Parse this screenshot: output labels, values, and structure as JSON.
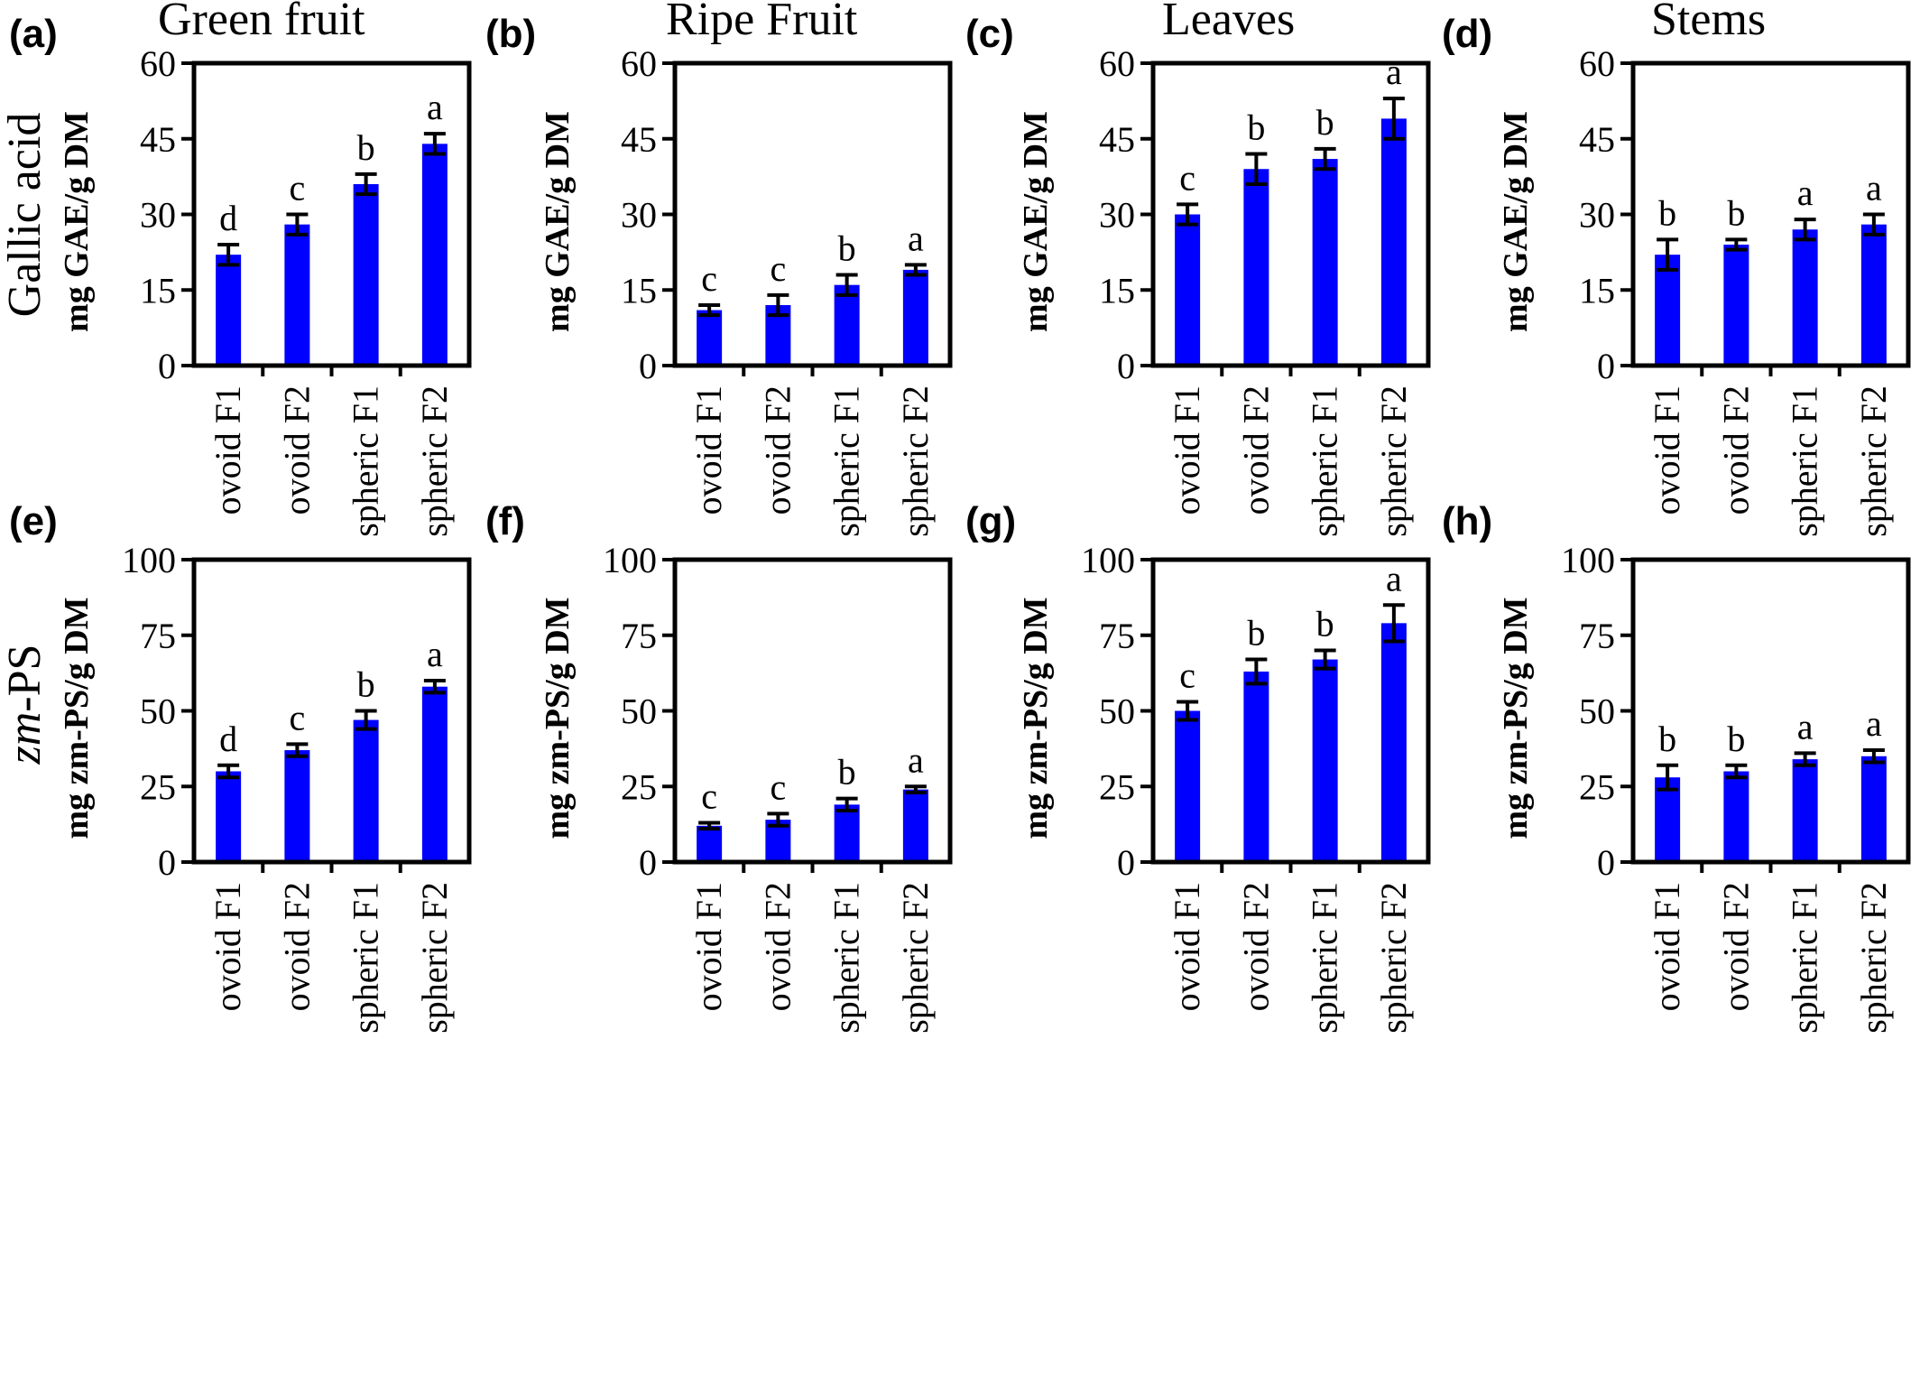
{
  "row_titles": [
    {
      "text": "Gallic acid",
      "italic_prefix": ""
    },
    {
      "text": "-PS",
      "italic_prefix": "zm"
    }
  ],
  "bar_color": "#0000ff",
  "chart_data": [
    {
      "panel": "(a)",
      "title": "Green fruit",
      "type": "bar",
      "ylabel": "mg  GAE/g DM",
      "ylim": [
        0,
        60
      ],
      "yticks": [
        0,
        15,
        30,
        45,
        60
      ],
      "categories": [
        "ovoid F1",
        "ovoid F2",
        "spheric F1",
        "spheric F2"
      ],
      "values": [
        22,
        28,
        36,
        44
      ],
      "errors": [
        2,
        2,
        2,
        2
      ],
      "letters": [
        "d",
        "c",
        "b",
        "a"
      ]
    },
    {
      "panel": "(b)",
      "title": "Ripe Fruit",
      "type": "bar",
      "ylabel": "mg  GAE/g DM",
      "ylim": [
        0,
        60
      ],
      "yticks": [
        0,
        15,
        30,
        45,
        60
      ],
      "categories": [
        "ovoid F1",
        "ovoid F2",
        "spheric F1",
        "spheric F2"
      ],
      "values": [
        11,
        12,
        16,
        19
      ],
      "errors": [
        1,
        2,
        2,
        1
      ],
      "letters": [
        "c",
        "c",
        "b",
        "a"
      ]
    },
    {
      "panel": "(c)",
      "title": "Leaves",
      "type": "bar",
      "ylabel": "mg  GAE/g DM",
      "ylim": [
        0,
        60
      ],
      "yticks": [
        0,
        15,
        30,
        45,
        60
      ],
      "categories": [
        "ovoid F1",
        "ovoid F2",
        "spheric F1",
        "spheric F2"
      ],
      "values": [
        30,
        39,
        41,
        49
      ],
      "errors": [
        2,
        3,
        2,
        4
      ],
      "letters": [
        "c",
        "b",
        "b",
        "a"
      ]
    },
    {
      "panel": "(d)",
      "title": "Stems",
      "type": "bar",
      "ylabel": "mg  GAE/g DM",
      "ylim": [
        0,
        60
      ],
      "yticks": [
        0,
        15,
        30,
        45,
        60
      ],
      "categories": [
        "ovoid F1",
        "ovoid F2",
        "spheric F1",
        "spheric F2"
      ],
      "values": [
        22,
        24,
        27,
        28
      ],
      "errors": [
        3,
        1,
        2,
        2
      ],
      "letters": [
        "b",
        "b",
        "a",
        "a"
      ]
    },
    {
      "panel": "(e)",
      "title": "",
      "type": "bar",
      "ylabel": "mg  zm-PS/g DM",
      "ylim": [
        0,
        100
      ],
      "yticks": [
        0,
        25,
        50,
        75,
        100
      ],
      "categories": [
        "ovoid F1",
        "ovoid F2",
        "spheric F1",
        "spheric F2"
      ],
      "values": [
        30,
        37,
        47,
        58
      ],
      "errors": [
        2,
        2,
        3,
        2
      ],
      "letters": [
        "d",
        "c",
        "b",
        "a"
      ]
    },
    {
      "panel": "(f)",
      "title": "",
      "type": "bar",
      "ylabel": "mg  zm-PS/g DM",
      "ylim": [
        0,
        100
      ],
      "yticks": [
        0,
        25,
        50,
        75,
        100
      ],
      "categories": [
        "ovoid F1",
        "ovoid F2",
        "spheric F1",
        "spheric F2"
      ],
      "values": [
        12,
        14,
        19,
        24
      ],
      "errors": [
        1,
        2,
        2,
        1
      ],
      "letters": [
        "c",
        "c",
        "b",
        "a"
      ]
    },
    {
      "panel": "(g)",
      "title": "",
      "type": "bar",
      "ylabel": "mg  zm-PS/g DM",
      "ylim": [
        0,
        100
      ],
      "yticks": [
        0,
        25,
        50,
        75,
        100
      ],
      "categories": [
        "ovoid F1",
        "ovoid F2",
        "spheric F1",
        "spheric F2"
      ],
      "values": [
        50,
        63,
        67,
        79
      ],
      "errors": [
        3,
        4,
        3,
        6
      ],
      "letters": [
        "c",
        "b",
        "b",
        "a"
      ]
    },
    {
      "panel": "(h)",
      "title": "",
      "type": "bar",
      "ylabel": "mg  zm-PS/g DM",
      "ylim": [
        0,
        100
      ],
      "yticks": [
        0,
        25,
        50,
        75,
        100
      ],
      "categories": [
        "ovoid F1",
        "ovoid F2",
        "spheric F1",
        "spheric F2"
      ],
      "values": [
        28,
        30,
        34,
        35
      ],
      "errors": [
        4,
        2,
        2,
        2
      ],
      "letters": [
        "b",
        "b",
        "a",
        "a"
      ]
    }
  ]
}
